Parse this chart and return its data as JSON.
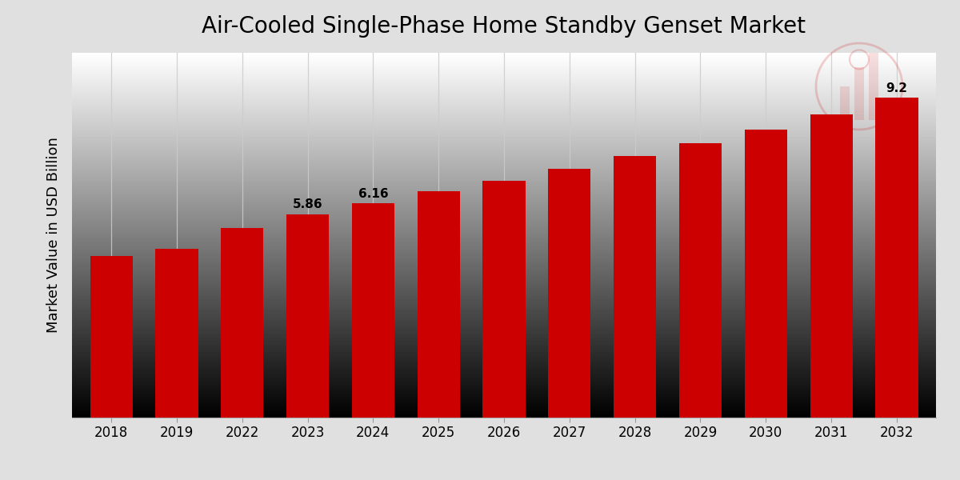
{
  "title": "Air-Cooled Single-Phase Home Standby Genset Market",
  "ylabel": "Market Value in USD Billion",
  "categories": [
    "2018",
    "2019",
    "2022",
    "2023",
    "2024",
    "2025",
    "2026",
    "2027",
    "2028",
    "2029",
    "2030",
    "2031",
    "2032"
  ],
  "values": [
    4.65,
    4.85,
    5.45,
    5.86,
    6.16,
    6.52,
    6.82,
    7.15,
    7.52,
    7.9,
    8.3,
    8.72,
    9.2
  ],
  "labeled_bars": {
    "2023": "5.86",
    "2024": "6.16",
    "2032": "9.2"
  },
  "bar_color": "#CC0000",
  "grid_color": "#cccccc",
  "title_fontsize": 20,
  "ylabel_fontsize": 13,
  "tick_fontsize": 12,
  "label_fontsize": 11,
  "ylim": [
    0,
    10.5
  ],
  "bar_width": 0.65,
  "bottom_strip_color": "#CC0000",
  "fig_bg_color": "#e0e0e0"
}
